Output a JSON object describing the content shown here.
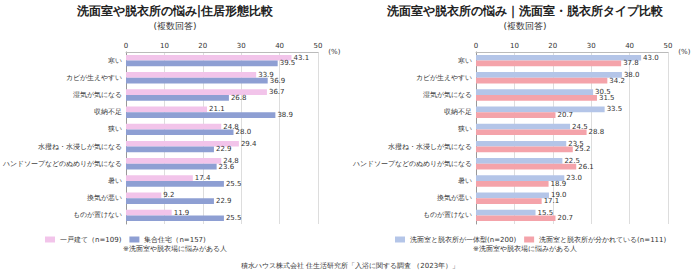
{
  "footer": "積水ハウス株式会社 住生活研究所「入浴に関する調査 （2023年）」",
  "chart_data": [
    {
      "type": "bar",
      "orientation": "horizontal",
      "title": "洗面室や脱衣所の悩み|住居形態比較",
      "subtitle": "(複数回答)",
      "note": "※洗面室や脱衣場に悩みがある人",
      "xlabel": "(%)",
      "xlim": [
        0,
        50
      ],
      "xticks": [
        0,
        10,
        20,
        30,
        40,
        50
      ],
      "grid": true,
      "legend": "bottom",
      "data_labels": true,
      "categories": [
        "寒い",
        "カビが生えやすい",
        "湿気が気になる",
        "収納不足",
        "狭い",
        "水撥ね・水浸しが気になる",
        "ハンドソープなどのぬめりが気になる",
        "暑い",
        "換気が悪い",
        "ものが置けない"
      ],
      "series": [
        {
          "name": "一戸建て（n=109)",
          "color": "#f2c4ea",
          "values": [
            43.1,
            33.9,
            36.7,
            21.1,
            24.8,
            29.4,
            24.8,
            17.4,
            9.2,
            11.9
          ],
          "value_labels": [
            "43.1",
            "33.9",
            "36.7",
            "21.1",
            "24.8",
            "29.4",
            "24.8",
            "17.4",
            "9.2",
            "11.9"
          ]
        },
        {
          "name": "集合住宅（n=157)",
          "color": "#8e9fd3",
          "values": [
            39.5,
            36.9,
            26.8,
            38.9,
            28.0,
            22.9,
            23.6,
            25.5,
            22.9,
            25.5
          ],
          "value_labels": [
            "39.5",
            "36.9",
            "26.8",
            "38.9",
            "28.0",
            "22.9",
            "23.6",
            "25.5",
            "22.9",
            "25.5"
          ]
        }
      ]
    },
    {
      "type": "bar",
      "orientation": "horizontal",
      "title": "洗面室や脱衣所の悩み｜洗面室・脱衣所タイプ比較",
      "subtitle": "(複数回答)",
      "note": "※洗面室や脱衣場に悩みがある人",
      "xlabel": "(%)",
      "xlim": [
        0,
        50
      ],
      "xticks": [
        0,
        10,
        20,
        30,
        40,
        50
      ],
      "grid": true,
      "legend": "bottom",
      "data_labels": true,
      "categories": [
        "寒い",
        "カビが生えやすい",
        "湿気が気になる",
        "収納不足",
        "狭い",
        "水撥ね・水浸しが気になる",
        "ハンドソープなどのぬめりが気になる",
        "暑い",
        "換気が悪い",
        "ものが置けない"
      ],
      "series": [
        {
          "name": "洗面室と脱衣所が一体型(n=200)",
          "color": "#b4c5e8",
          "values": [
            43.0,
            38.0,
            30.5,
            33.5,
            24.5,
            23.5,
            22.5,
            23.0,
            19.0,
            15.5
          ],
          "value_labels": [
            "43.0",
            "38.0",
            "30.5",
            "33.5",
            "24.5",
            "23.5",
            "22.5",
            "23.0",
            "19.0",
            "15.5"
          ]
        },
        {
          "name": "洗面室と脱衣所が分かれている(n=111)",
          "color": "#f4a3aa",
          "values": [
            37.8,
            34.2,
            31.5,
            20.7,
            28.8,
            25.2,
            26.1,
            18.9,
            17.1,
            20.7
          ],
          "value_labels": [
            "37.8",
            "34.2",
            "31.5",
            "20.7",
            "28.8",
            "25.2",
            "26.1",
            "18.9",
            "17.1",
            "20.7"
          ]
        }
      ]
    }
  ]
}
